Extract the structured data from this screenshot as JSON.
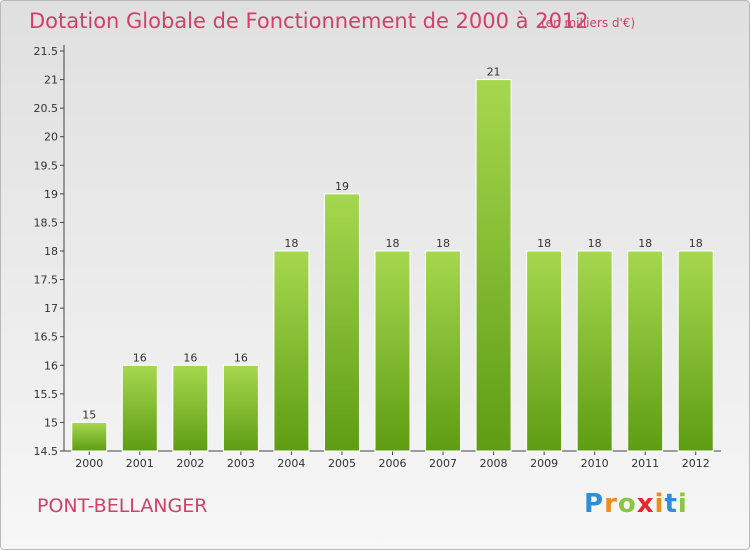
{
  "title": "Dotation Globale de Fonctionnement de 2000 à 2012",
  "subtitle": "(en milliers d'€)",
  "commune": "PONT-BELLANGER",
  "logo": {
    "letters": [
      "P",
      "r",
      "o",
      "x",
      "i",
      "t",
      "i"
    ],
    "colors": [
      "#2f8fd6",
      "#f08a1c",
      "#8cc63f",
      "#e8262f",
      "#f08a1c",
      "#2f8fd6",
      "#8cc63f"
    ]
  },
  "colors": {
    "title": "#d33f66",
    "bar_top": "#a6d84f",
    "bar_bottom": "#5e9d12",
    "grid": "#cccccc"
  },
  "chart_data": {
    "type": "bar",
    "categories": [
      "2000",
      "2001",
      "2002",
      "2003",
      "2004",
      "2005",
      "2006",
      "2007",
      "2008",
      "2009",
      "2010",
      "2011",
      "2012"
    ],
    "values": [
      15,
      16,
      16,
      16,
      18,
      19,
      18,
      18,
      21,
      18,
      18,
      18,
      18
    ],
    "value_labels": [
      "15",
      "16",
      "16",
      "16",
      "18",
      "19",
      "18",
      "18",
      "21",
      "18",
      "18",
      "18",
      "18"
    ],
    "ylim": [
      14.5,
      21.5
    ],
    "yticks": [
      14.5,
      15,
      15.5,
      16,
      16.5,
      17,
      17.5,
      18,
      18.5,
      19,
      19.5,
      20,
      20.5,
      21,
      21.5
    ],
    "ytick_labels": [
      "14.5",
      "15",
      "15.5",
      "16",
      "16.5",
      "17",
      "17.5",
      "18",
      "18.5",
      "19",
      "19.5",
      "20",
      "20.5",
      "21",
      "21.5"
    ],
    "grid": false
  }
}
